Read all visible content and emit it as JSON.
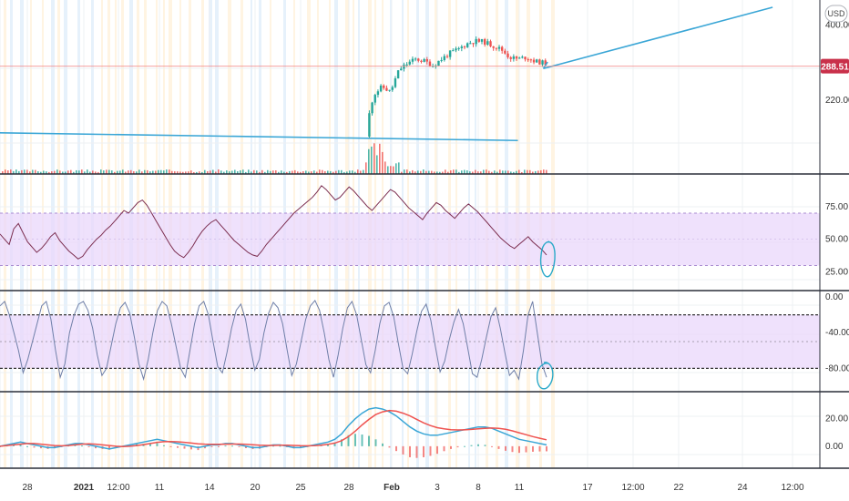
{
  "app": {
    "currency_button": "USD",
    "last_price": "288.51"
  },
  "colors": {
    "background": "#ffffff",
    "separator": "#2a2e39",
    "grid": "#eef0f3",
    "band_fill": "#e9d7fb",
    "band_border": "#a98bd1",
    "rsi_line": "#7b2d4f",
    "stoch_line": "#6f7fa8",
    "trend_line": "#3aa6d6",
    "ma_line": "#ef5350",
    "up": "#26a69a",
    "down": "#ef5350",
    "volume_up": "#26a69a",
    "volume_down": "#ef5350",
    "annotation_circle": "#2aa9c9",
    "price_tag": "#c9304a",
    "price_line": "#f28a8a",
    "vert_shade_1": "#fff3df",
    "vert_shade_2": "#e3f0fb"
  },
  "x_axis": {
    "ticks": [
      {
        "label": "28",
        "bold": false
      },
      {
        "label": "2021",
        "bold": true
      },
      {
        "label": "12:00",
        "bold": false
      },
      {
        "label": "11",
        "bold": false
      },
      {
        "label": "14",
        "bold": false
      },
      {
        "label": "20",
        "bold": false
      },
      {
        "label": "25",
        "bold": false
      },
      {
        "label": "28",
        "bold": false
      },
      {
        "label": "Feb",
        "bold": true
      },
      {
        "label": "3",
        "bold": false
      },
      {
        "label": "8",
        "bold": false
      },
      {
        "label": "11",
        "bold": false
      },
      {
        "label": "17",
        "bold": false
      },
      {
        "label": "12:00",
        "bold": false
      },
      {
        "label": "22",
        "bold": false
      },
      {
        "label": "24",
        "bold": false
      },
      {
        "label": "12:00",
        "bold": false
      }
    ]
  },
  "chart_data": [
    {
      "type": "candlestick",
      "pane": "price",
      "y_ticks": [
        "400.00",
        "220.00"
      ],
      "ylim": [
        130,
        460
      ],
      "scale": "log",
      "currency": "USD",
      "last_price": 288.51,
      "volume": true,
      "trend_lines": [
        {
          "name": "",
          "points": [
            [
              0,
              170
            ],
            [
              0.61,
              160
            ]
          ]
        },
        {
          "name": "",
          "points": [
            [
              0.64,
              283
            ],
            [
              0.91,
              460
            ]
          ]
        }
      ],
      "price_path": [
        [
          0.0,
          155
        ],
        [
          0.4,
          152
        ],
        [
          0.43,
          165
        ],
        [
          0.44,
          230
        ],
        [
          0.45,
          245
        ],
        [
          0.46,
          235
        ],
        [
          0.47,
          280
        ],
        [
          0.48,
          295
        ],
        [
          0.49,
          305
        ],
        [
          0.5,
          300
        ],
        [
          0.51,
          290
        ],
        [
          0.52,
          305
        ],
        [
          0.53,
          320
        ],
        [
          0.54,
          330
        ],
        [
          0.55,
          345
        ],
        [
          0.56,
          352
        ],
        [
          0.57,
          350
        ],
        [
          0.58,
          340
        ],
        [
          0.59,
          330
        ],
        [
          0.6,
          310
        ],
        [
          0.61,
          305
        ],
        [
          0.62,
          310
        ],
        [
          0.63,
          300
        ],
        [
          0.64,
          296
        ]
      ]
    },
    {
      "type": "line",
      "pane": "rsi",
      "y_ticks": [
        "75.00",
        "50.00",
        "25.00"
      ],
      "ylim": [
        15,
        95
      ],
      "band": [
        30,
        70
      ],
      "values": [
        54,
        50,
        46,
        58,
        62,
        55,
        48,
        44,
        40,
        43,
        47,
        52,
        55,
        49,
        45,
        41,
        38,
        35,
        37,
        42,
        46,
        50,
        53,
        57,
        60,
        64,
        68,
        72,
        70,
        74,
        78,
        80,
        76,
        70,
        64,
        58,
        52,
        46,
        41,
        38,
        36,
        40,
        45,
        51,
        56,
        60,
        63,
        65,
        61,
        57,
        53,
        49,
        46,
        43,
        40,
        38,
        37,
        41,
        46,
        50,
        54,
        58,
        62,
        66,
        70,
        73,
        76,
        79,
        82,
        86,
        91,
        88,
        84,
        80,
        82,
        86,
        90,
        87,
        83,
        79,
        75,
        72,
        76,
        80,
        84,
        88,
        86,
        82,
        78,
        74,
        71,
        68,
        65,
        70,
        74,
        78,
        76,
        72,
        69,
        66,
        70,
        74,
        77,
        74,
        71,
        67,
        63,
        59,
        55,
        51,
        48,
        45,
        43,
        46,
        49,
        52,
        48,
        45,
        42,
        38
      ]
    },
    {
      "type": "line",
      "pane": "stochastic",
      "y_ticks": [
        "0.00",
        "-40.00",
        "-80.00"
      ],
      "ylim": [
        -100,
        0
      ],
      "band": [
        -80,
        -20
      ],
      "values": [
        -10,
        -5,
        -20,
        -40,
        -60,
        -85,
        -70,
        -50,
        -30,
        -10,
        -5,
        -25,
        -60,
        -90,
        -75,
        -40,
        -20,
        -8,
        -5,
        -15,
        -35,
        -65,
        -88,
        -80,
        -55,
        -30,
        -12,
        -6,
        -18,
        -45,
        -75,
        -92,
        -70,
        -40,
        -15,
        -5,
        -10,
        -30,
        -55,
        -80,
        -90,
        -60,
        -30,
        -10,
        -5,
        -20,
        -50,
        -78,
        -85,
        -62,
        -35,
        -15,
        -8,
        -25,
        -55,
        -82,
        -70,
        -40,
        -18,
        -6,
        -12,
        -30,
        -60,
        -88,
        -75,
        -50,
        -25,
        -10,
        -4,
        -15,
        -40,
        -70,
        -90,
        -65,
        -35,
        -12,
        -5,
        -20,
        -48,
        -76,
        -85,
        -60,
        -30,
        -10,
        -6,
        -22,
        -52,
        -80,
        -86,
        -64,
        -38,
        -16,
        -8,
        -26,
        -56,
        -84,
        -72,
        -48,
        -28,
        -14,
        -30,
        -58,
        -86,
        -90,
        -70,
        -45,
        -22,
        -12,
        -35,
        -62,
        -88,
        -82,
        -92,
        -60,
        -20,
        -5,
        -40,
        -75,
        -90
      ]
    },
    {
      "type": "line",
      "pane": "macd",
      "y_ticks": [
        "20.00",
        "0.00"
      ],
      "ylim": [
        -12,
        35
      ],
      "series": [
        {
          "name": "",
          "values": [
            0,
            1,
            2,
            3,
            2,
            1,
            0,
            -1,
            -1,
            0,
            1,
            2,
            2,
            1,
            0,
            -1,
            -2,
            -1,
            0,
            1,
            2,
            3,
            4,
            5,
            4,
            3,
            2,
            1,
            0,
            -1,
            0,
            1,
            1,
            2,
            2,
            1,
            0,
            -1,
            -1,
            0,
            1,
            1,
            0,
            -1,
            -1,
            0,
            1,
            2,
            3,
            5,
            9,
            15,
            20,
            24,
            27,
            28,
            27,
            25,
            22,
            18,
            14,
            11,
            9,
            8,
            8,
            9,
            10,
            11,
            12,
            13,
            14,
            14,
            13,
            11,
            9,
            7,
            5,
            4,
            3,
            2,
            1
          ]
        },
        {
          "name": "",
          "values": [
            0,
            0.5,
            1,
            1.5,
            2,
            2,
            1.5,
            1,
            0.5,
            0.3,
            0.5,
            1,
            1.5,
            1.7,
            1.5,
            1,
            0.5,
            0,
            -0.3,
            0,
            0.5,
            1.2,
            2,
            2.8,
            3.3,
            3.4,
            3.2,
            2.8,
            2.3,
            1.8,
            1.5,
            1.4,
            1.4,
            1.5,
            1.6,
            1.6,
            1.4,
            1.1,
            0.8,
            0.6,
            0.6,
            0.7,
            0.7,
            0.6,
            0.4,
            0.3,
            0.4,
            0.8,
            1.4,
            2.3,
            4,
            7,
            11,
            15.5,
            19.5,
            23,
            25,
            26,
            25.5,
            24,
            22,
            19.5,
            17,
            15,
            13.5,
            12.6,
            12,
            11.8,
            11.9,
            12.2,
            12.6,
            13,
            13.2,
            13,
            12.3,
            11.2,
            9.8,
            8.4,
            7,
            5.8,
            4.7
          ]
        }
      ]
    }
  ]
}
